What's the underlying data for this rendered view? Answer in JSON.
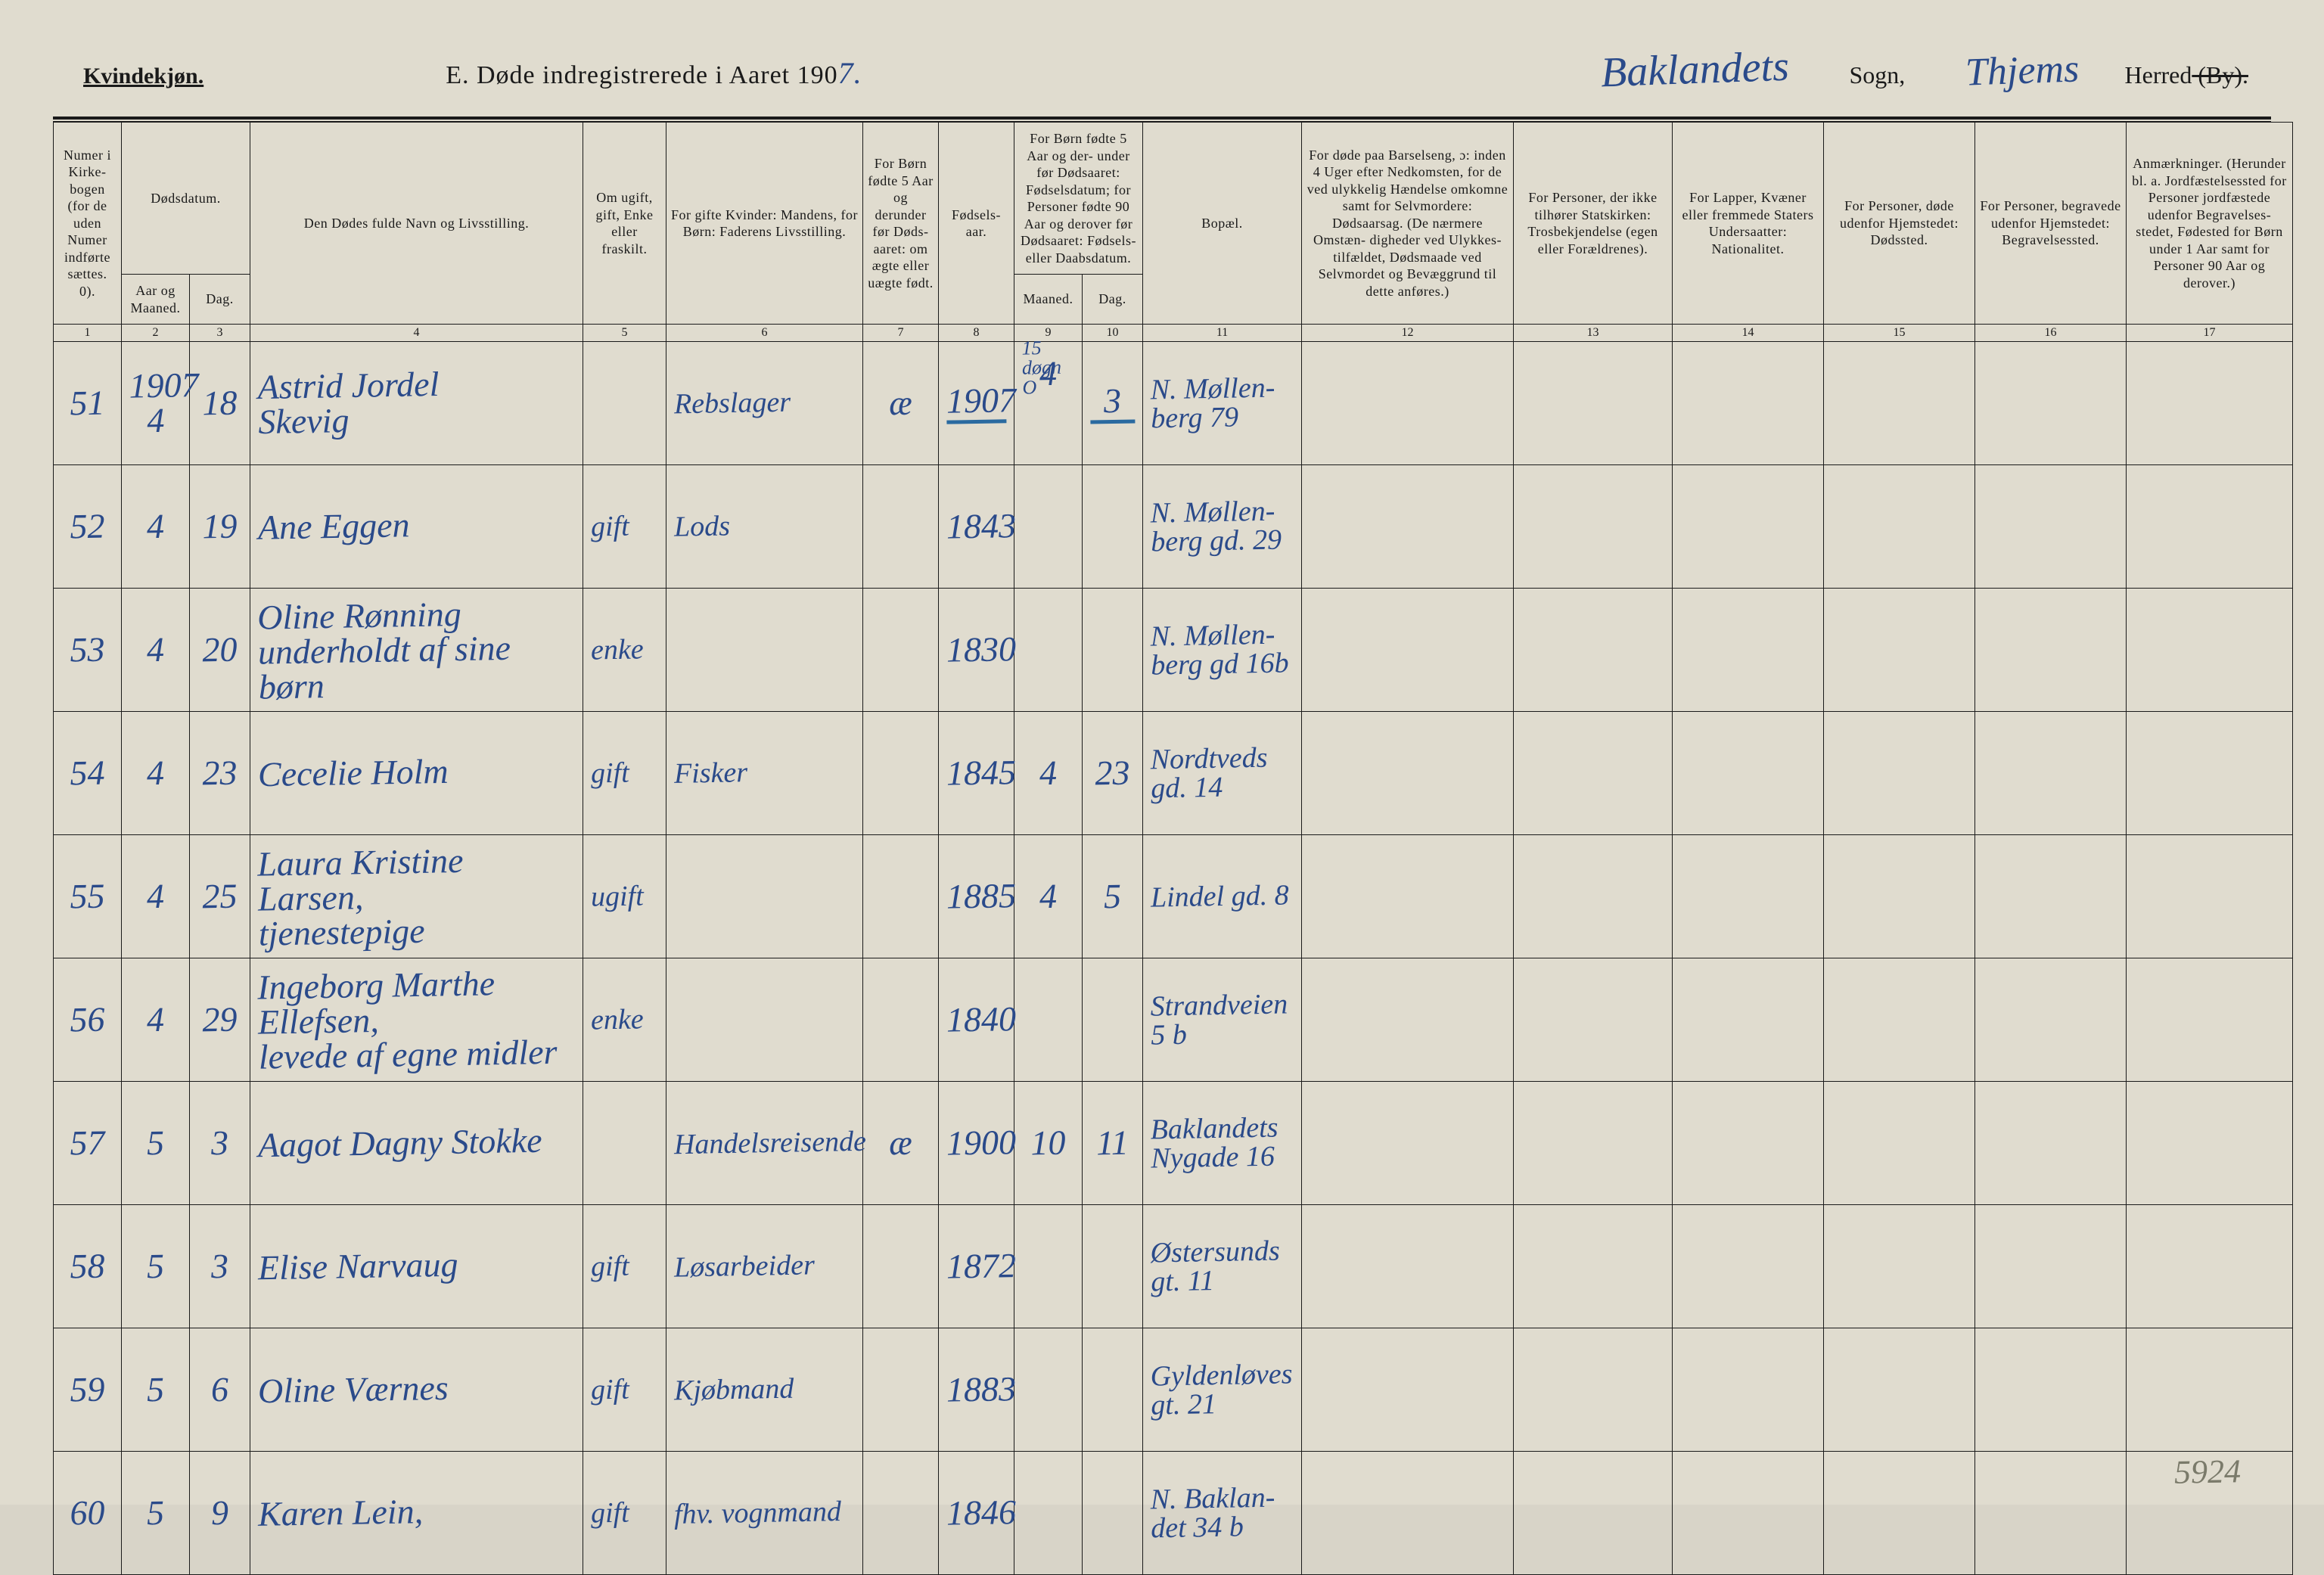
{
  "header": {
    "gender": "Kvindekjøn.",
    "title_prefix": "E.  Døde indregistrerede i Aaret 190",
    "year_suffix": "7.",
    "sogn_value": "Baklandets",
    "sogn_label": "Sogn,",
    "herred_value": "Thjems",
    "herred_label_prefix": "Herred",
    "herred_label_strike": " (By)."
  },
  "columns": {
    "c1": "Numer\ni Kirke-\nbogen\n(for de\nuden\nNumer\nindførte\nsættes.\n0).",
    "c2_group": "Dødsdatum.",
    "c2a": "Aar\nog\nMaaned.",
    "c2b": "Dag.",
    "c4": "Den Dødes fulde Navn og Livsstilling.",
    "c5": "Om\nugift,\ngift,\nEnke\neller\nfraskilt.",
    "c6": "For gifte Kvinder:\nMandens,\nfor Børn:\nFaderens Livsstilling.",
    "c7": "For Børn\nfødte\n5 Aar og\nderunder\nfør Døds-\naaret:\nom ægte\neller\nuægte\nfødt.",
    "c8": "Fødsels-\naar.",
    "c9_group": "For Børn fødte\n5 Aar og der-\nunder før\nDødsaaret:\nFødselsdatum;\nfor Personer\nfødte 90 Aar\nog derover før\nDødsaaret:\nFødsels- eller\nDaabsdatum.",
    "c9a": "Maaned.",
    "c9b": "Dag.",
    "c11": "Bopæl.",
    "c12": "For døde paa Barselseng,\nɔ: inden 4 Uger efter\nNedkomsten,\nfor de ved ulykkelig\nHændelse omkomne\nsamt for Selvmordere:\nDødsaarsag.\n(De nærmere Omstæn-\ndigheder ved Ulykkes-\ntilfældet, Dødsmaade ved\nSelvmordet og Bevæggrund\ntil dette anføres.)",
    "c13": "For Personer,\nder ikke tilhører\nStatskirken:\nTrosbekjendelse\n(egen eller Forældrenes).",
    "c14": "For Lapper, Kvæner\neller fremmede\nStaters Undersaatter:\nNationalitet.",
    "c15": "For Personer, døde\nudenfor Hjemstedet:\nDødssted.",
    "c16": "For Personer, begravede\nudenfor Hjemstedet:\nBegravelsessted.",
    "c17": "Anmærkninger.\n(Herunder bl. a.\nJordfæstelsessted for\nPersoner jordfæstede\nudenfor Begravelses-\nstedet, Fødested for\nBørn under 1 Aar\nsamt for Personer\n90 Aar og derover.)"
  },
  "colnums": [
    "1",
    "2",
    "3",
    "4",
    "5",
    "6",
    "7",
    "8",
    "9",
    "10",
    "11",
    "12",
    "13",
    "14",
    "15",
    "16",
    "17"
  ],
  "rows": [
    {
      "num": "51",
      "aar_mnd": "1907\n4",
      "dag": "18",
      "navn": "Astrid Jordel\nSkevig",
      "stand": "",
      "far": "Rebslager",
      "aegte": "æ",
      "faar": "1907",
      "fmnd": "4",
      "fdag": "3",
      "bopael": "N. Møllen-\nberg 79",
      "note_top": "15 døgn O",
      "underline_year": true
    },
    {
      "num": "52",
      "aar_mnd": "4",
      "dag": "19",
      "navn": "Ane Eggen",
      "stand": "gift",
      "far": "Lods",
      "aegte": "",
      "faar": "1843",
      "fmnd": "",
      "fdag": "",
      "bopael": "N. Møllen-\nberg gd. 29"
    },
    {
      "num": "53",
      "aar_mnd": "4",
      "dag": "20",
      "navn": "Oline Rønning\nunderholdt af sine børn",
      "stand": "enke",
      "far": "",
      "aegte": "",
      "faar": "1830",
      "fmnd": "",
      "fdag": "",
      "bopael": "N. Møllen-\nberg gd 16b"
    },
    {
      "num": "54",
      "aar_mnd": "4",
      "dag": "23",
      "navn": "Cecelie Holm",
      "stand": "gift",
      "far": "Fisker",
      "aegte": "",
      "faar": "1845",
      "fmnd": "4",
      "fdag": "23",
      "bopael": "Nordtveds\ngd. 14"
    },
    {
      "num": "55",
      "aar_mnd": "4",
      "dag": "25",
      "navn": "Laura Kristine Larsen,\ntjenestepige",
      "stand": "ugift",
      "far": "",
      "aegte": "",
      "faar": "1885",
      "fmnd": "4",
      "fdag": "5",
      "bopael": "Lindel gd. 8"
    },
    {
      "num": "56",
      "aar_mnd": "4",
      "dag": "29",
      "navn": "Ingeborg Marthe Ellefsen,\nlevede af egne midler",
      "stand": "enke",
      "far": "",
      "aegte": "",
      "faar": "1840",
      "fmnd": "",
      "fdag": "",
      "bopael": "Strandveien\n5 b"
    },
    {
      "num": "57",
      "aar_mnd": "5",
      "dag": "3",
      "navn": "Aagot Dagny Stokke",
      "stand": "",
      "far": "Handelsreisende",
      "aegte": "æ",
      "faar": "1900",
      "fmnd": "10",
      "fdag": "11",
      "bopael": "Baklandets\nNygade 16"
    },
    {
      "num": "58",
      "aar_mnd": "5",
      "dag": "3",
      "navn": "Elise Narvaug",
      "stand": "gift",
      "far": "Løsarbeider",
      "aegte": "",
      "faar": "1872",
      "fmnd": "",
      "fdag": "",
      "bopael": "Østersunds\ngt. 11"
    },
    {
      "num": "59",
      "aar_mnd": "5",
      "dag": "6",
      "navn": "Oline Værnes",
      "stand": "gift",
      "far": "Kjøbmand",
      "aegte": "",
      "faar": "1883",
      "fmnd": "",
      "fdag": "",
      "bopael": "Gyldenløves\ngt. 21"
    },
    {
      "num": "60",
      "aar_mnd": "5",
      "dag": "9",
      "navn": "Karen Lein,",
      "stand": "gift",
      "far": "fhv. vognmand",
      "aegte": "",
      "faar": "1846",
      "fmnd": "",
      "fdag": "",
      "bopael": "N. Baklan-\ndet 34 b"
    }
  ],
  "bottom_number": "5924",
  "style": {
    "page_bg": "#e0dccf",
    "ink": "#1a1a1a",
    "handwriting_color": "#2a4a8a",
    "underline_color": "#2a6aa0",
    "header_font_size_pt": 34,
    "hw_font_size_pt": 46,
    "th_font_size_pt": 18
  }
}
